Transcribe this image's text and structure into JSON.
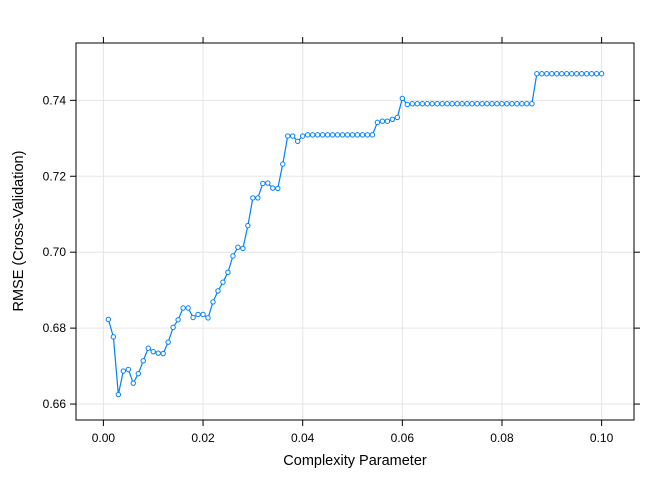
{
  "chart_data": {
    "type": "line",
    "title": "",
    "xlabel": "Complexity Parameter",
    "ylabel": "RMSE (Cross-Validation)",
    "xlim": [
      -0.0055,
      0.1065
    ],
    "ylim": [
      0.6558,
      0.7551
    ],
    "xticks": [
      "0.00",
      "0.02",
      "0.04",
      "0.06",
      "0.08",
      "0.10"
    ],
    "yticks": [
      "0.66",
      "0.68",
      "0.70",
      "0.72",
      "0.74"
    ],
    "grid": true,
    "legend": "none",
    "series_color": "#0080ff",
    "grid_color": "#e6e6e6",
    "x": [
      0.001,
      0.002,
      0.003,
      0.004,
      0.005,
      0.006,
      0.007,
      0.008,
      0.009,
      0.01,
      0.011,
      0.012,
      0.013,
      0.014,
      0.015,
      0.016,
      0.017,
      0.018,
      0.019,
      0.02,
      0.021,
      0.022,
      0.023,
      0.024,
      0.025,
      0.026,
      0.027,
      0.028,
      0.029,
      0.03,
      0.031,
      0.032,
      0.033,
      0.034,
      0.035,
      0.036,
      0.037,
      0.038,
      0.039,
      0.04,
      0.041,
      0.042,
      0.043,
      0.044,
      0.045,
      0.046,
      0.047,
      0.048,
      0.049,
      0.05,
      0.051,
      0.052,
      0.053,
      0.054,
      0.055,
      0.056,
      0.057,
      0.058,
      0.059,
      0.06,
      0.061,
      0.062,
      0.063,
      0.064,
      0.065,
      0.066,
      0.067,
      0.068,
      0.069,
      0.07,
      0.071,
      0.072,
      0.073,
      0.074,
      0.075,
      0.076,
      0.077,
      0.078,
      0.079,
      0.08,
      0.081,
      0.082,
      0.083,
      0.084,
      0.085,
      0.086,
      0.087,
      0.088,
      0.089,
      0.09,
      0.091,
      0.092,
      0.093,
      0.094,
      0.095,
      0.096,
      0.097,
      0.098,
      0.099,
      0.1
    ],
    "y": [
      0.6823,
      0.6777,
      0.6625,
      0.6687,
      0.6691,
      0.6655,
      0.668,
      0.6714,
      0.6747,
      0.6738,
      0.6734,
      0.6733,
      0.6763,
      0.6802,
      0.6822,
      0.6853,
      0.6853,
      0.6828,
      0.6836,
      0.6836,
      0.6827,
      0.6869,
      0.6898,
      0.6921,
      0.6947,
      0.699,
      0.7013,
      0.701,
      0.707,
      0.7143,
      0.7143,
      0.7181,
      0.7182,
      0.7169,
      0.7168,
      0.7232,
      0.7306,
      0.7306,
      0.7292,
      0.7306,
      0.7309,
      0.7309,
      0.7309,
      0.7309,
      0.7309,
      0.7309,
      0.7309,
      0.7309,
      0.7309,
      0.7309,
      0.7309,
      0.7309,
      0.7309,
      0.7309,
      0.7342,
      0.7345,
      0.7345,
      0.735,
      0.7355,
      0.7405,
      0.7389,
      0.7391,
      0.7391,
      0.7391,
      0.7391,
      0.7391,
      0.7391,
      0.7391,
      0.7391,
      0.7391,
      0.7391,
      0.7391,
      0.7391,
      0.7391,
      0.7391,
      0.7391,
      0.7391,
      0.7391,
      0.7391,
      0.7391,
      0.7391,
      0.7391,
      0.7391,
      0.7391,
      0.7391,
      0.7391,
      0.747,
      0.747,
      0.747,
      0.747,
      0.747,
      0.747,
      0.747,
      0.747,
      0.747,
      0.747,
      0.747,
      0.747,
      0.747,
      0.747
    ]
  }
}
